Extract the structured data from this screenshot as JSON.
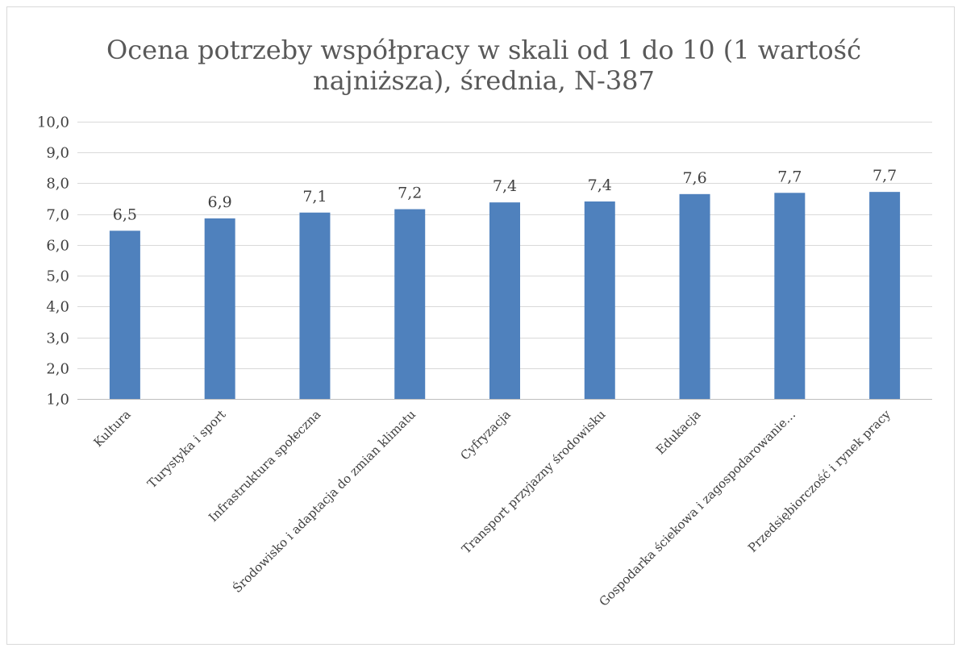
{
  "chart_data": {
    "type": "bar",
    "title": "Ocena potrzeby współpracy w skali od 1 do 10 (1 wartość najniższa), średnia, N-387",
    "title_lines": [
      "Ocena potrzeby współpracy w skali od 1 do 10 (1 wartość",
      "najniższa), średnia, N-387"
    ],
    "xlabel": "",
    "ylabel": "",
    "categories": [
      "Kultura",
      "Turystyka i sport",
      "Infrastruktura społeczna",
      "Środowisko i adaptacja do zmian klimatu",
      "Cyfryzacja",
      "Transport przyjazny środowisku",
      "Edukacja",
      "Gospodarka ściekowa i zagospodarowanie…",
      "Przedsiębiorczość i rynek pracy"
    ],
    "values": [
      6.46,
      6.86,
      7.05,
      7.16,
      7.38,
      7.41,
      7.65,
      7.69,
      7.72
    ],
    "data_labels": [
      "6,5",
      "6,9",
      "7,1",
      "7,2",
      "7,4",
      "7,4",
      "7,6",
      "7,7",
      "7,7"
    ],
    "ylim": [
      1,
      10
    ],
    "yticks": [
      1,
      2,
      3,
      4,
      5,
      6,
      7,
      8,
      9,
      10
    ],
    "ytick_labels": [
      "1,0",
      "2,0",
      "3,0",
      "4,0",
      "5,0",
      "6,0",
      "7,0",
      "8,0",
      "9,0",
      "10,0"
    ],
    "grid": true,
    "legend": "none",
    "colors": {
      "bar": "#4f81bd",
      "grid": "#d9d9d9",
      "text": "#404040",
      "title": "#595959"
    }
  }
}
